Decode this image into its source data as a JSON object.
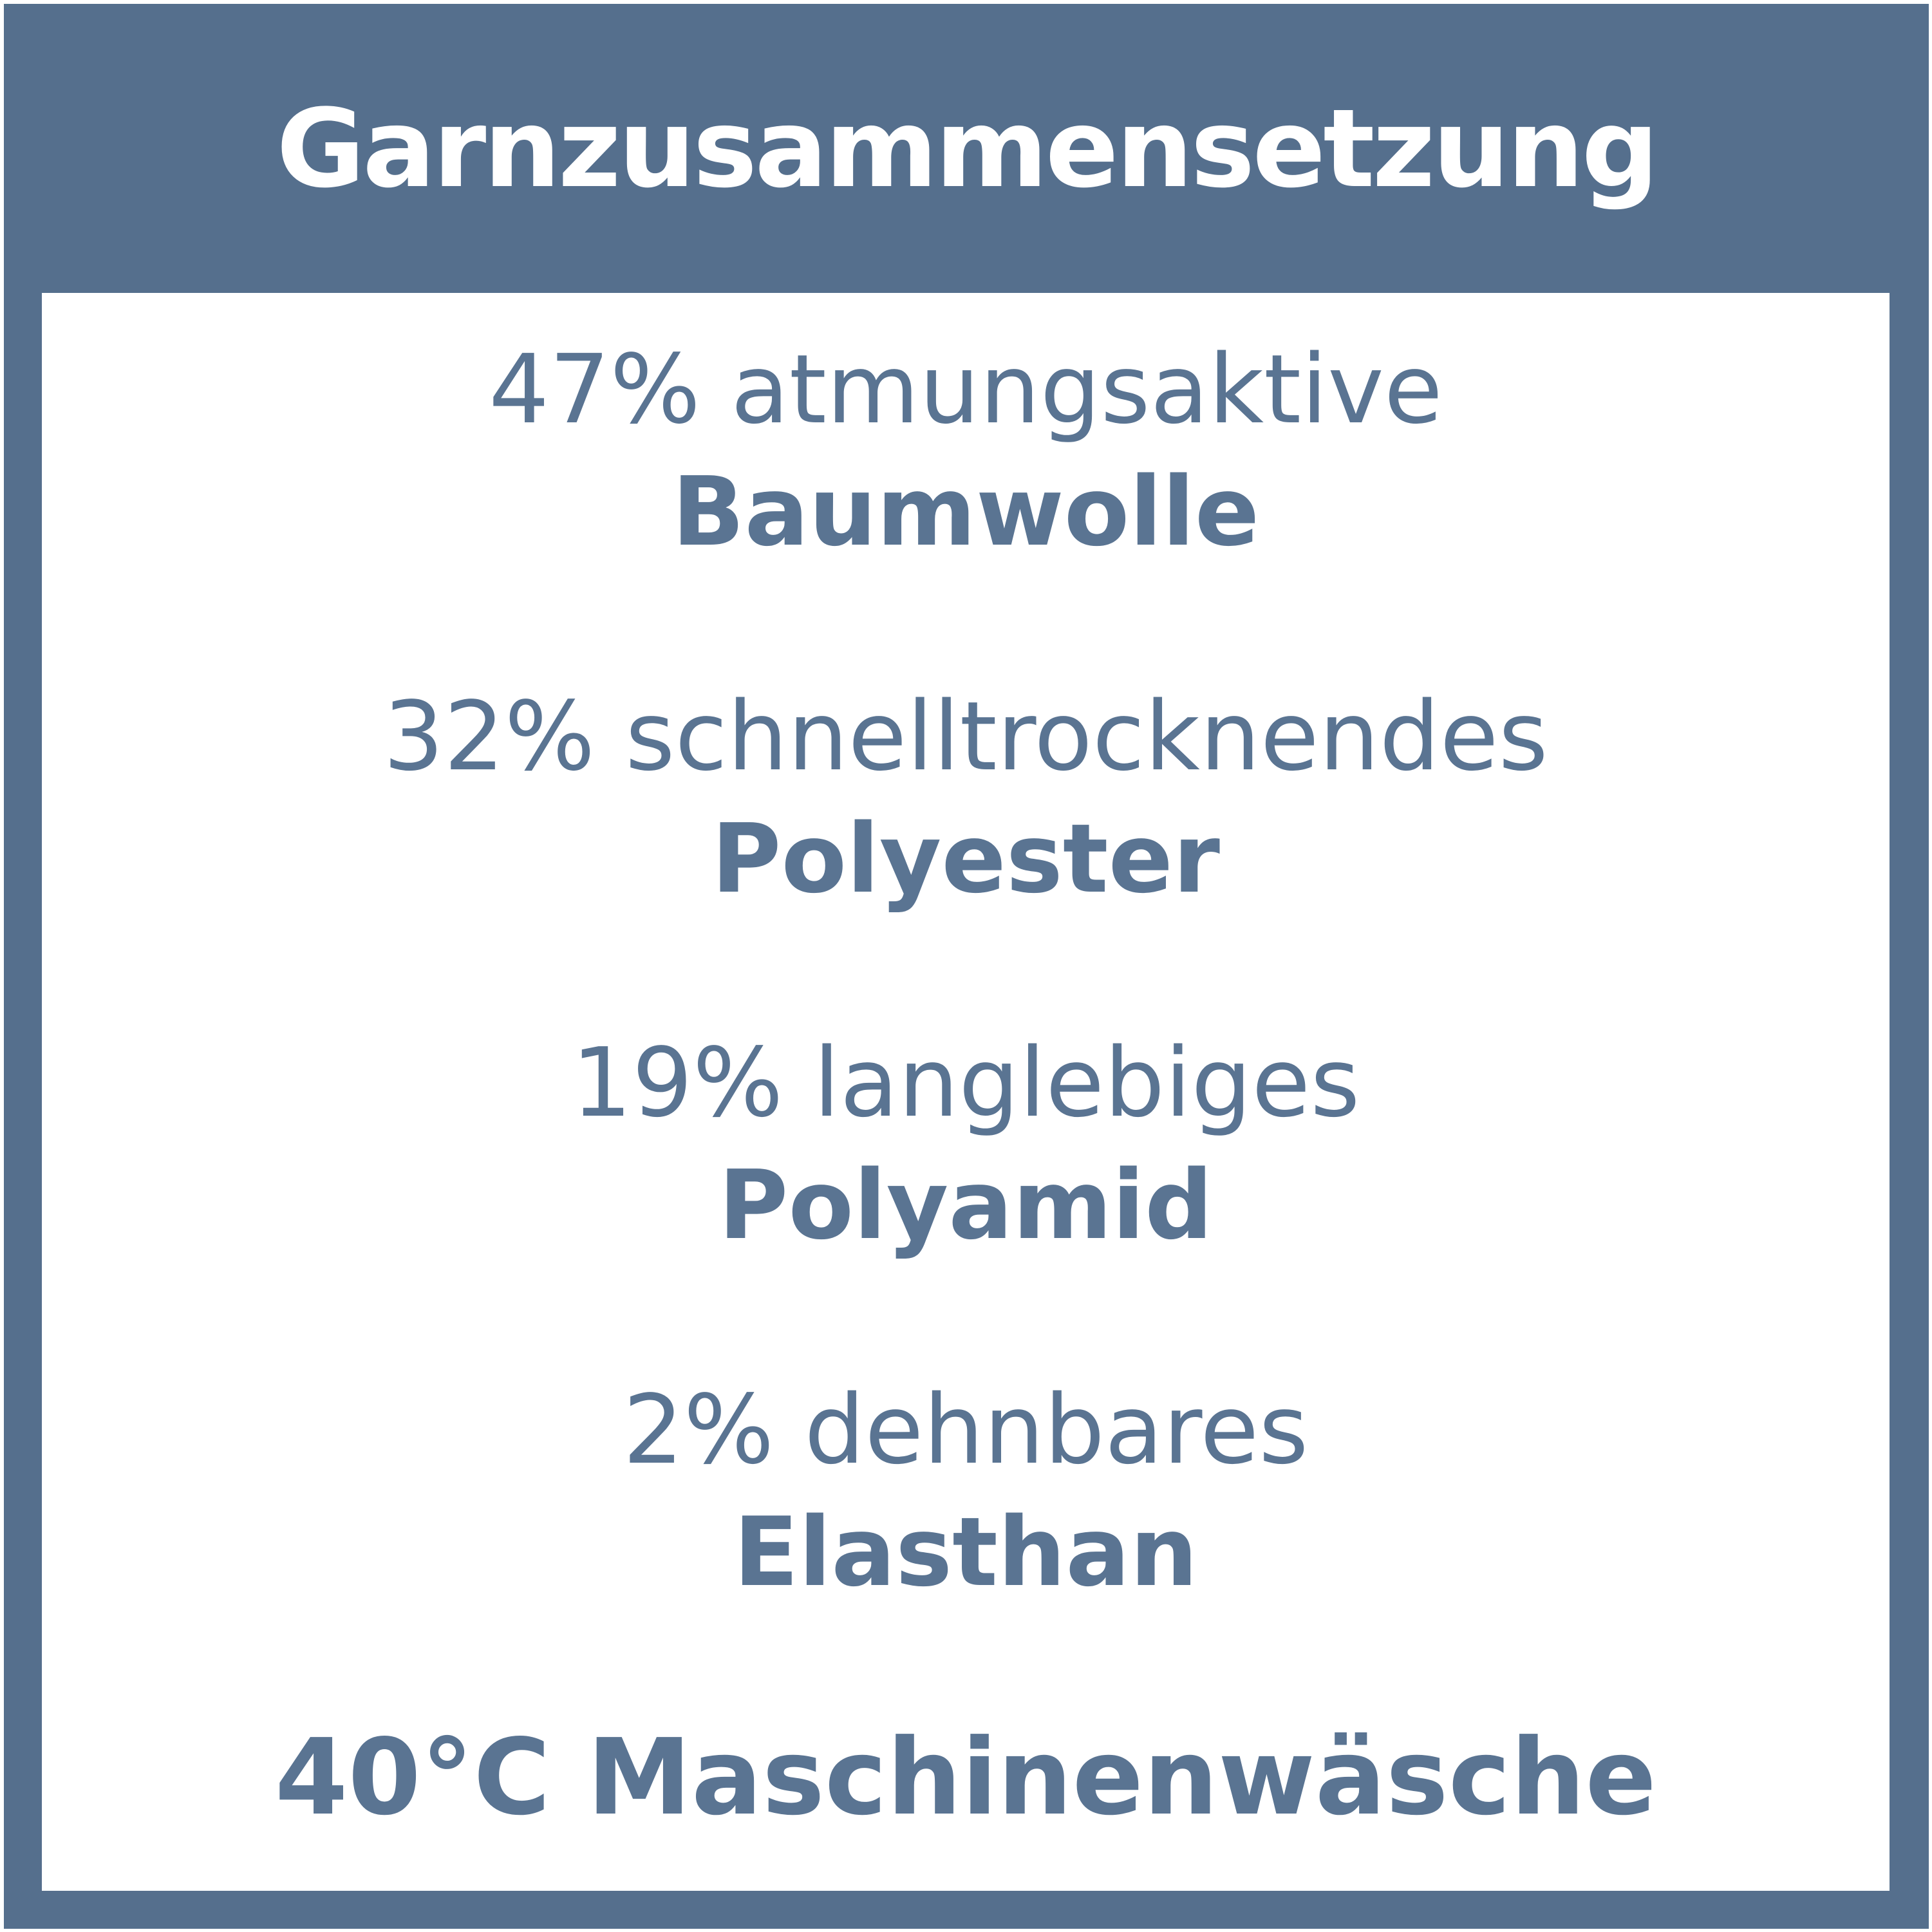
{
  "title": "Garnzusammensetzung",
  "composition": [
    {
      "desc": "47% atmungsaktive",
      "material": "Baumwolle"
    },
    {
      "desc": "32% schnelltrocknendes",
      "material": "Polyester"
    },
    {
      "desc": "19% langlebiges",
      "material": "Polyamid"
    },
    {
      "desc": "2% dehnbares",
      "material": "Elasthan"
    }
  ],
  "care": "40°C Maschinenwäsche",
  "colors": {
    "frame_blue": "#556f8d",
    "text_blue": "#5a7492",
    "panel_white": "#ffffff",
    "title_white": "#ffffff"
  }
}
